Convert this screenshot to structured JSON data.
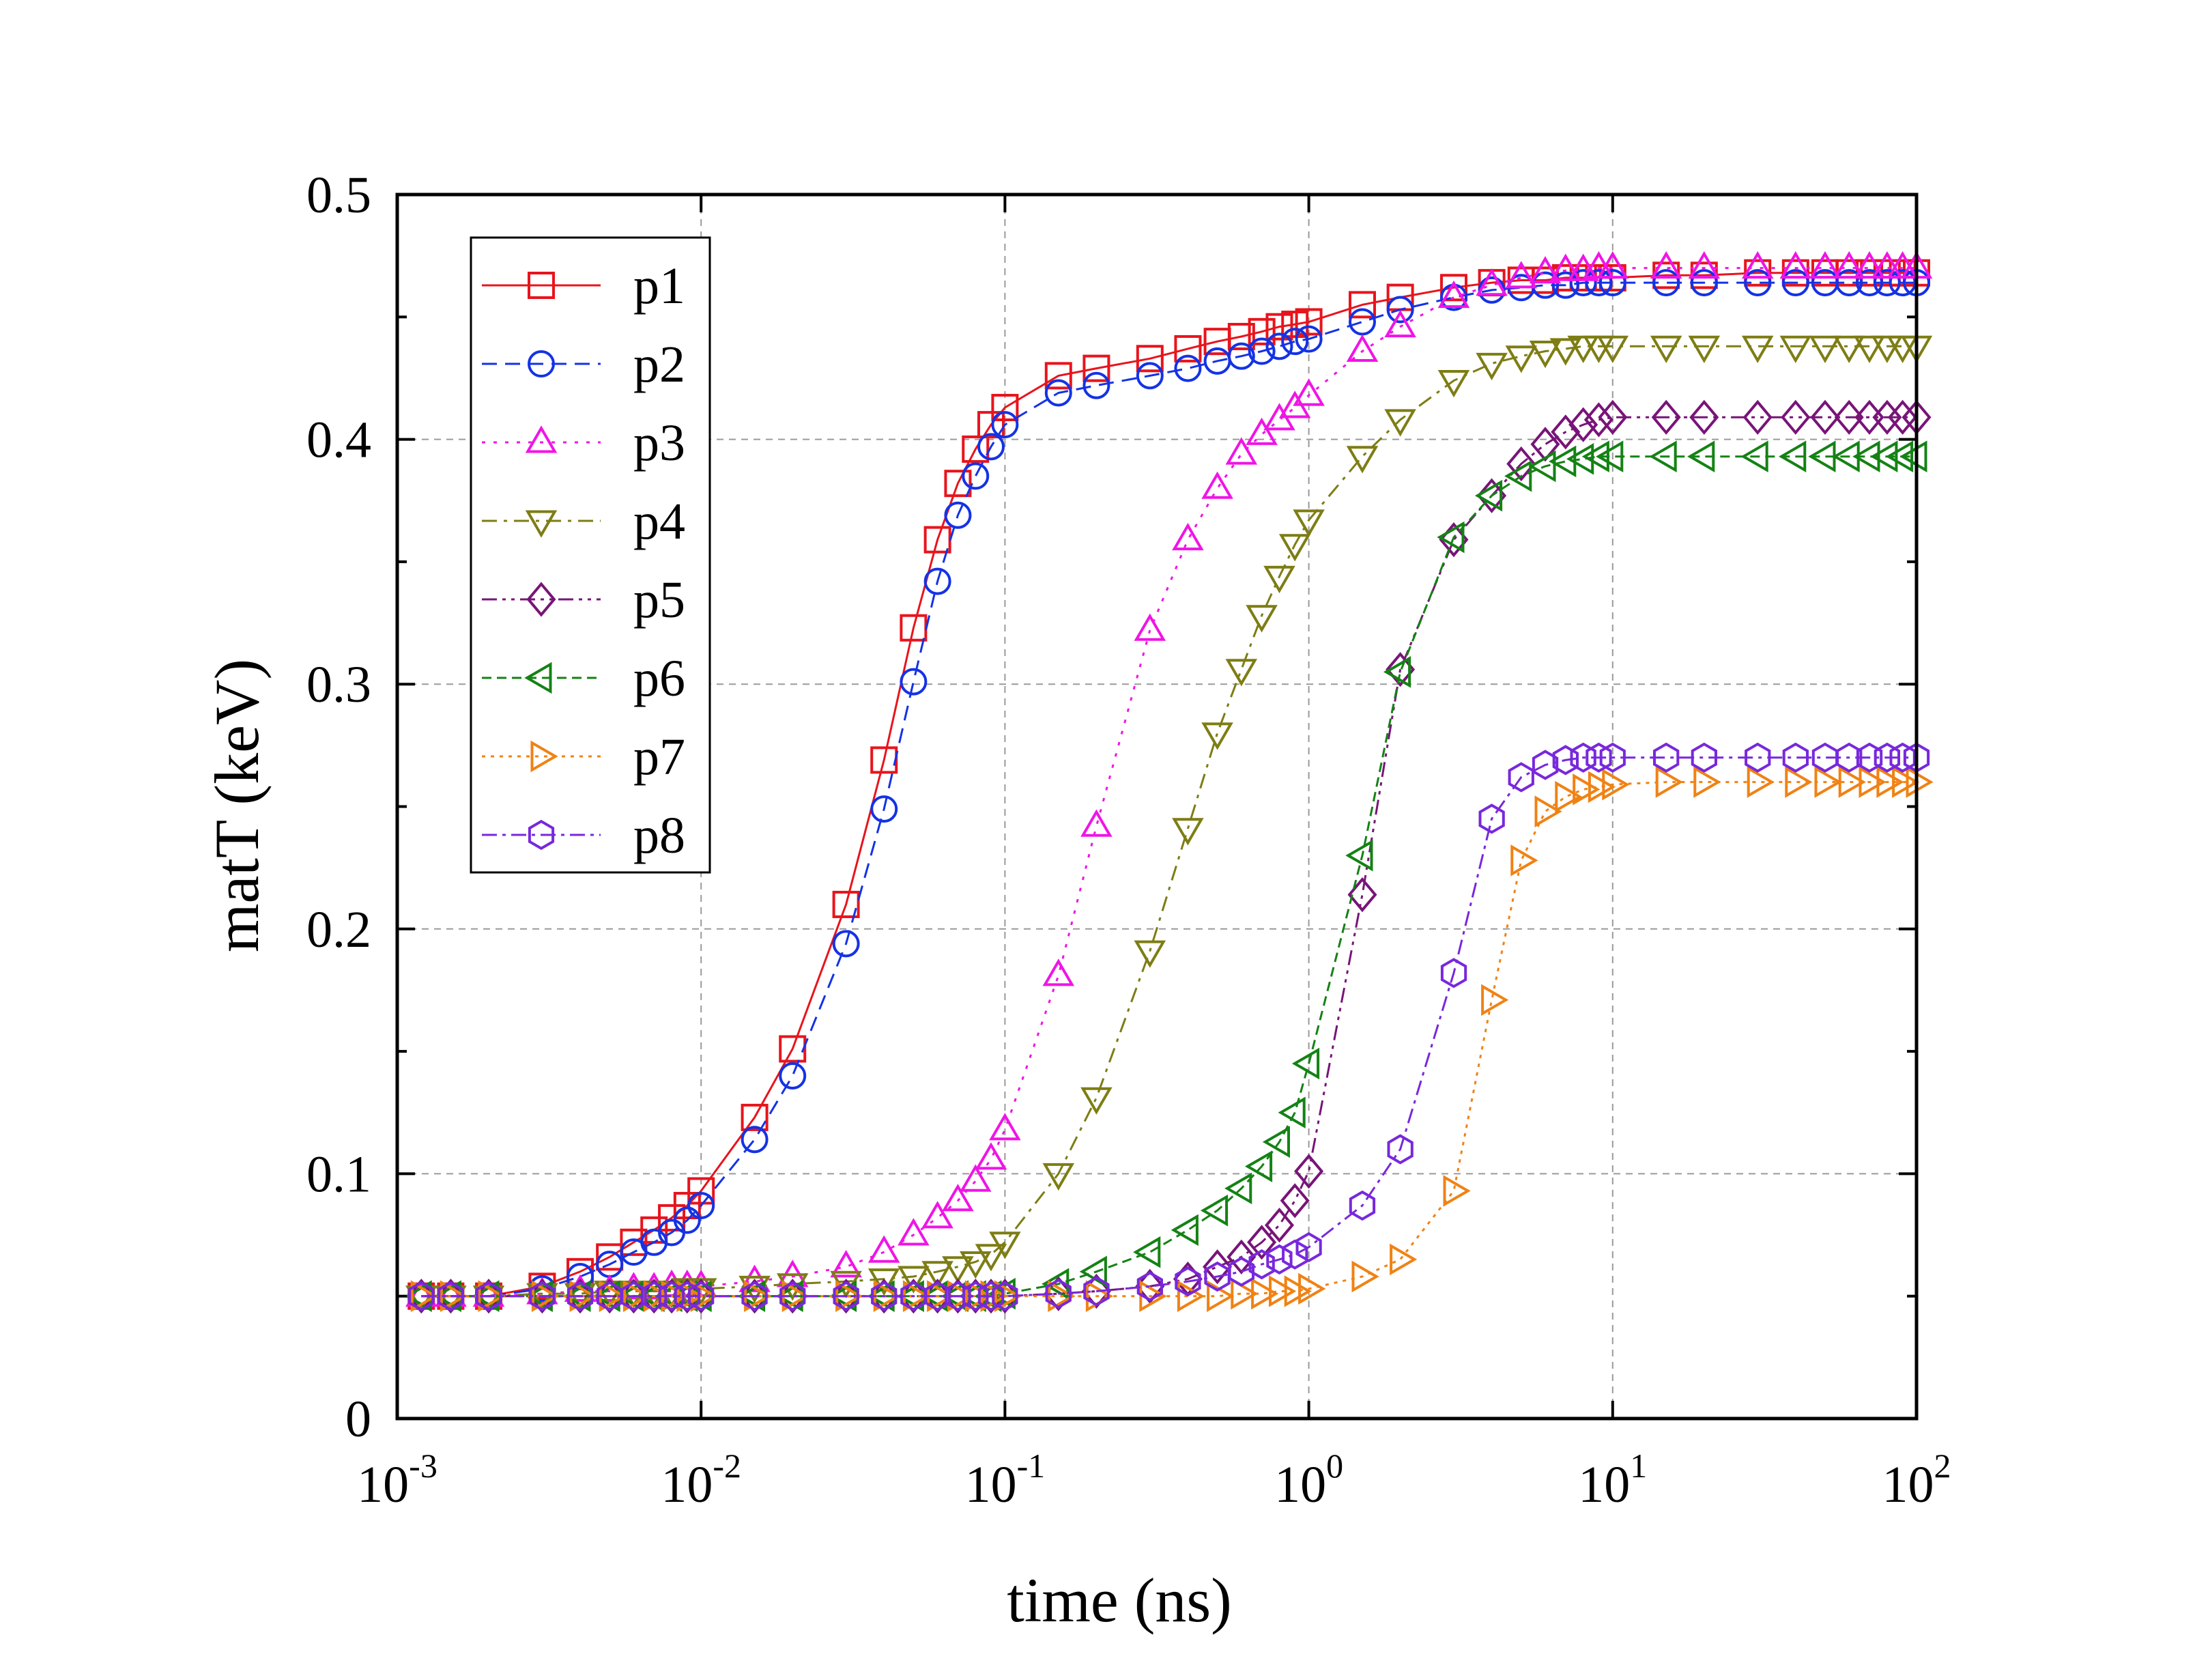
{
  "chart_data": {
    "type": "line",
    "title": "",
    "xlabel": "time (ns)",
    "ylabel": "matT (keV)",
    "xscale": "log",
    "xlim": [
      0.001,
      100
    ],
    "ylim": [
      0,
      0.5
    ],
    "grid": true,
    "legend_position": "top-left",
    "x_ticks": [
      {
        "value": 0.001,
        "base": "10",
        "exp": "-3"
      },
      {
        "value": 0.01,
        "base": "10",
        "exp": "-2"
      },
      {
        "value": 0.1,
        "base": "10",
        "exp": "-1"
      },
      {
        "value": 1,
        "base": "10",
        "exp": "0"
      },
      {
        "value": 10,
        "base": "10",
        "exp": "1"
      },
      {
        "value": 100,
        "base": "10",
        "exp": "2"
      }
    ],
    "y_ticks": [
      {
        "value": 0,
        "label": "0"
      },
      {
        "value": 0.1,
        "label": "0.1"
      },
      {
        "value": 0.2,
        "label": "0.2"
      },
      {
        "value": 0.3,
        "label": "0.3"
      },
      {
        "value": 0.4,
        "label": "0.4"
      },
      {
        "value": 0.5,
        "label": "0.5"
      }
    ],
    "series": [
      {
        "name": "p1",
        "color": "#e8141c",
        "marker": "square",
        "dash": "",
        "x": [
          0.0012,
          0.0015,
          0.002,
          0.003,
          0.004,
          0.005,
          0.006,
          0.007,
          0.008,
          0.009,
          0.01,
          0.015,
          0.02,
          0.03,
          0.04,
          0.05,
          0.06,
          0.07,
          0.08,
          0.09,
          0.1,
          0.15,
          0.2,
          0.3,
          0.4,
          0.5,
          0.6,
          0.7,
          0.8,
          0.9,
          1,
          1.5,
          2,
          3,
          4,
          5,
          6,
          7,
          8,
          9,
          10,
          15,
          20,
          30,
          40,
          50,
          60,
          70,
          80,
          90,
          100
        ],
        "y": [
          0.05,
          0.05,
          0.05,
          0.054,
          0.06,
          0.066,
          0.072,
          0.077,
          0.082,
          0.087,
          0.093,
          0.123,
          0.151,
          0.21,
          0.269,
          0.323,
          0.359,
          0.382,
          0.396,
          0.406,
          0.413,
          0.426,
          0.429,
          0.433,
          0.437,
          0.44,
          0.442,
          0.444,
          0.446,
          0.447,
          0.448,
          0.455,
          0.458,
          0.462,
          0.464,
          0.465,
          0.465,
          0.466,
          0.466,
          0.466,
          0.466,
          0.467,
          0.467,
          0.468,
          0.468,
          0.468,
          0.468,
          0.468,
          0.468,
          0.468,
          0.468
        ]
      },
      {
        "name": "p2",
        "color": "#1432e6",
        "marker": "circle",
        "dash": "22 12",
        "x": [
          0.0012,
          0.0015,
          0.002,
          0.003,
          0.004,
          0.005,
          0.006,
          0.007,
          0.008,
          0.009,
          0.01,
          0.015,
          0.02,
          0.03,
          0.04,
          0.05,
          0.06,
          0.07,
          0.08,
          0.09,
          0.1,
          0.15,
          0.2,
          0.3,
          0.4,
          0.5,
          0.6,
          0.7,
          0.8,
          0.9,
          1,
          1.5,
          2,
          3,
          4,
          5,
          6,
          7,
          8,
          9,
          10,
          15,
          20,
          30,
          40,
          50,
          60,
          70,
          80,
          90,
          100
        ],
        "y": [
          0.05,
          0.05,
          0.05,
          0.053,
          0.058,
          0.063,
          0.068,
          0.072,
          0.076,
          0.081,
          0.087,
          0.114,
          0.14,
          0.194,
          0.249,
          0.301,
          0.342,
          0.369,
          0.385,
          0.397,
          0.406,
          0.419,
          0.422,
          0.426,
          0.429,
          0.432,
          0.434,
          0.436,
          0.438,
          0.44,
          0.441,
          0.448,
          0.453,
          0.458,
          0.461,
          0.462,
          0.463,
          0.463,
          0.464,
          0.464,
          0.464,
          0.464,
          0.464,
          0.464,
          0.464,
          0.464,
          0.464,
          0.464,
          0.464,
          0.464,
          0.464
        ]
      },
      {
        "name": "p3",
        "color": "#f014e6",
        "marker": "triangle-up",
        "dash": "5 12",
        "x": [
          0.0012,
          0.0015,
          0.002,
          0.003,
          0.004,
          0.005,
          0.006,
          0.007,
          0.008,
          0.009,
          0.01,
          0.015,
          0.02,
          0.03,
          0.04,
          0.05,
          0.06,
          0.07,
          0.08,
          0.09,
          0.1,
          0.15,
          0.2,
          0.3,
          0.4,
          0.5,
          0.6,
          0.7,
          0.8,
          0.9,
          1,
          1.5,
          2,
          3,
          4,
          5,
          6,
          7,
          8,
          9,
          10,
          15,
          20,
          30,
          40,
          50,
          60,
          70,
          80,
          90,
          100
        ],
        "y": [
          0.05,
          0.05,
          0.05,
          0.051,
          0.052,
          0.052,
          0.053,
          0.053,
          0.054,
          0.054,
          0.054,
          0.056,
          0.058,
          0.062,
          0.068,
          0.075,
          0.082,
          0.089,
          0.097,
          0.106,
          0.118,
          0.181,
          0.242,
          0.322,
          0.359,
          0.38,
          0.394,
          0.402,
          0.408,
          0.413,
          0.418,
          0.436,
          0.446,
          0.458,
          0.463,
          0.466,
          0.468,
          0.469,
          0.469,
          0.47,
          0.47,
          0.47,
          0.47,
          0.47,
          0.47,
          0.47,
          0.47,
          0.47,
          0.47,
          0.47,
          0.47
        ]
      },
      {
        "name": "p4",
        "color": "#7d7d14",
        "marker": "triangle-down",
        "dash": "22 10 5 10",
        "x": [
          0.0012,
          0.0015,
          0.002,
          0.003,
          0.004,
          0.005,
          0.006,
          0.007,
          0.008,
          0.009,
          0.01,
          0.015,
          0.02,
          0.03,
          0.04,
          0.05,
          0.06,
          0.07,
          0.08,
          0.09,
          0.1,
          0.15,
          0.2,
          0.3,
          0.4,
          0.5,
          0.6,
          0.7,
          0.8,
          0.9,
          1,
          1.5,
          2,
          3,
          4,
          5,
          6,
          7,
          8,
          9,
          10,
          15,
          20,
          30,
          40,
          50,
          60,
          70,
          80,
          90,
          100
        ],
        "y": [
          0.05,
          0.05,
          0.05,
          0.051,
          0.051,
          0.052,
          0.052,
          0.052,
          0.052,
          0.053,
          0.053,
          0.054,
          0.055,
          0.056,
          0.057,
          0.058,
          0.06,
          0.062,
          0.064,
          0.067,
          0.072,
          0.1,
          0.131,
          0.191,
          0.241,
          0.28,
          0.306,
          0.328,
          0.344,
          0.357,
          0.367,
          0.393,
          0.408,
          0.424,
          0.431,
          0.434,
          0.436,
          0.437,
          0.438,
          0.438,
          0.438,
          0.438,
          0.438,
          0.438,
          0.438,
          0.438,
          0.438,
          0.438,
          0.438,
          0.438,
          0.438
        ]
      },
      {
        "name": "p5",
        "color": "#781478",
        "marker": "diamond",
        "dash": "22 8 5 8 5 8",
        "x": [
          0.0012,
          0.0015,
          0.002,
          0.003,
          0.004,
          0.005,
          0.006,
          0.007,
          0.008,
          0.009,
          0.01,
          0.015,
          0.02,
          0.03,
          0.04,
          0.05,
          0.06,
          0.07,
          0.08,
          0.09,
          0.1,
          0.15,
          0.2,
          0.3,
          0.4,
          0.5,
          0.6,
          0.7,
          0.8,
          0.9,
          1,
          1.5,
          2,
          3,
          4,
          5,
          6,
          7,
          8,
          9,
          10,
          15,
          20,
          30,
          40,
          50,
          60,
          70,
          80,
          90,
          100
        ],
        "y": [
          0.05,
          0.05,
          0.05,
          0.05,
          0.05,
          0.05,
          0.05,
          0.05,
          0.05,
          0.05,
          0.05,
          0.05,
          0.05,
          0.05,
          0.05,
          0.05,
          0.05,
          0.05,
          0.05,
          0.05,
          0.05,
          0.051,
          0.052,
          0.054,
          0.057,
          0.062,
          0.066,
          0.072,
          0.079,
          0.089,
          0.101,
          0.214,
          0.306,
          0.359,
          0.377,
          0.39,
          0.398,
          0.403,
          0.406,
          0.408,
          0.409,
          0.409,
          0.409,
          0.409,
          0.409,
          0.409,
          0.409,
          0.409,
          0.409,
          0.409,
          0.409
        ]
      },
      {
        "name": "p6",
        "color": "#148214",
        "marker": "triangle-left",
        "dash": "14 8",
        "x": [
          0.0012,
          0.0015,
          0.002,
          0.003,
          0.004,
          0.005,
          0.006,
          0.007,
          0.008,
          0.009,
          0.01,
          0.015,
          0.02,
          0.03,
          0.04,
          0.05,
          0.06,
          0.07,
          0.08,
          0.09,
          0.1,
          0.15,
          0.2,
          0.3,
          0.4,
          0.5,
          0.6,
          0.7,
          0.8,
          0.9,
          1,
          1.5,
          2,
          3,
          4,
          5,
          6,
          7,
          8,
          9,
          10,
          15,
          20,
          30,
          40,
          50,
          60,
          70,
          80,
          90,
          100
        ],
        "y": [
          0.05,
          0.05,
          0.05,
          0.05,
          0.05,
          0.05,
          0.05,
          0.05,
          0.05,
          0.05,
          0.05,
          0.05,
          0.05,
          0.05,
          0.05,
          0.05,
          0.05,
          0.05,
          0.05,
          0.05,
          0.051,
          0.055,
          0.06,
          0.068,
          0.077,
          0.085,
          0.094,
          0.103,
          0.113,
          0.125,
          0.145,
          0.23,
          0.305,
          0.36,
          0.377,
          0.385,
          0.389,
          0.391,
          0.392,
          0.393,
          0.393,
          0.393,
          0.393,
          0.393,
          0.393,
          0.393,
          0.393,
          0.393,
          0.393,
          0.393,
          0.393
        ]
      },
      {
        "name": "p7",
        "color": "#f08214",
        "marker": "triangle-right",
        "dash": "5 8",
        "x": [
          0.0012,
          0.0015,
          0.002,
          0.003,
          0.004,
          0.005,
          0.006,
          0.007,
          0.008,
          0.009,
          0.01,
          0.015,
          0.02,
          0.03,
          0.04,
          0.05,
          0.06,
          0.07,
          0.08,
          0.09,
          0.1,
          0.15,
          0.2,
          0.3,
          0.4,
          0.5,
          0.6,
          0.7,
          0.8,
          0.9,
          1,
          1.5,
          2,
          3,
          4,
          5,
          6,
          7,
          8,
          9,
          10,
          15,
          20,
          30,
          40,
          50,
          60,
          70,
          80,
          90,
          100
        ],
        "y": [
          0.05,
          0.05,
          0.05,
          0.05,
          0.05,
          0.05,
          0.05,
          0.05,
          0.05,
          0.05,
          0.05,
          0.05,
          0.05,
          0.05,
          0.05,
          0.05,
          0.05,
          0.05,
          0.05,
          0.05,
          0.05,
          0.05,
          0.05,
          0.05,
          0.05,
          0.05,
          0.051,
          0.051,
          0.052,
          0.052,
          0.053,
          0.058,
          0.065,
          0.093,
          0.171,
          0.228,
          0.248,
          0.254,
          0.257,
          0.258,
          0.259,
          0.26,
          0.26,
          0.26,
          0.26,
          0.26,
          0.26,
          0.26,
          0.26,
          0.26,
          0.26
        ]
      },
      {
        "name": "p8",
        "color": "#7828dc",
        "marker": "hexagon",
        "dash": "22 8 5 8",
        "x": [
          0.0012,
          0.0015,
          0.002,
          0.003,
          0.004,
          0.005,
          0.006,
          0.007,
          0.008,
          0.009,
          0.01,
          0.015,
          0.02,
          0.03,
          0.04,
          0.05,
          0.06,
          0.07,
          0.08,
          0.09,
          0.1,
          0.15,
          0.2,
          0.3,
          0.4,
          0.5,
          0.6,
          0.7,
          0.8,
          0.9,
          1,
          1.5,
          2,
          3,
          4,
          5,
          6,
          7,
          8,
          9,
          10,
          15,
          20,
          30,
          40,
          50,
          60,
          70,
          80,
          90,
          100
        ],
        "y": [
          0.05,
          0.05,
          0.05,
          0.05,
          0.05,
          0.05,
          0.05,
          0.05,
          0.05,
          0.05,
          0.05,
          0.05,
          0.05,
          0.05,
          0.05,
          0.05,
          0.05,
          0.05,
          0.05,
          0.05,
          0.05,
          0.051,
          0.052,
          0.054,
          0.056,
          0.058,
          0.06,
          0.063,
          0.065,
          0.067,
          0.07,
          0.087,
          0.11,
          0.182,
          0.245,
          0.262,
          0.267,
          0.269,
          0.27,
          0.27,
          0.27,
          0.27,
          0.27,
          0.27,
          0.27,
          0.27,
          0.27,
          0.27,
          0.27,
          0.27,
          0.27
        ]
      }
    ]
  }
}
